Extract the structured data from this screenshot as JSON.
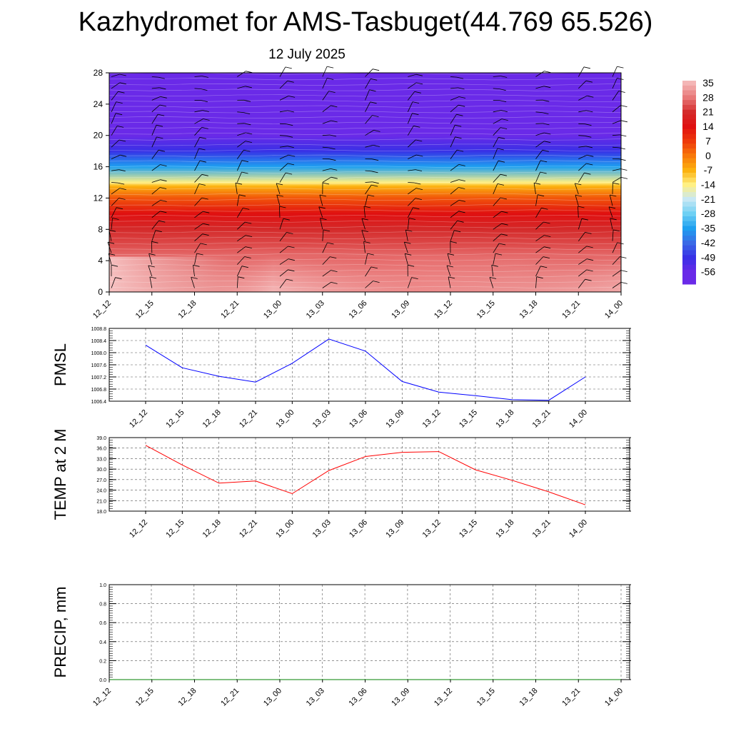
{
  "header": {
    "title": "Kazhydromet for AMS-Tasbuget(44.769 65.526)",
    "subtitle": "12 July 2025"
  },
  "chart_data": [
    {
      "type": "heatmap",
      "title": "",
      "ylim": [
        0,
        28
      ],
      "yticks": [
        0,
        4,
        8,
        12,
        16,
        20,
        24,
        28
      ],
      "times": [
        "12_12",
        "12_15",
        "12_18",
        "12_21",
        "13_00",
        "13_03",
        "13_06",
        "13_09",
        "13_12",
        "13_15",
        "13_18",
        "13_21",
        "14_00"
      ],
      "temperature_profile_by_level": {
        "levels": [
          0,
          2,
          4,
          6,
          8,
          10,
          12,
          13.5,
          14,
          16,
          18,
          20,
          22,
          24,
          26,
          28
        ],
        "values": [
          35,
          32,
          28,
          24,
          21,
          14,
          4,
          -7,
          -14,
          -35,
          -49,
          -56,
          -60,
          -57,
          -59,
          -58
        ]
      },
      "wind_barbs": true,
      "colorbar": {
        "labels": [
          "35",
          "28",
          "21",
          "14",
          "7",
          "0",
          "-7",
          "-14",
          "-21",
          "-28",
          "-35",
          "-42",
          "-49",
          "-56"
        ],
        "colors": [
          "#f4b6b6",
          "#e87878",
          "#d42a2a",
          "#e01010",
          "#ee3a0a",
          "#f8780a",
          "#fcb20f",
          "#fff084",
          "#c8e8f4",
          "#6ed0f4",
          "#1ea0f0",
          "#3a6ae6",
          "#3830e6",
          "#6a2ae8"
        ],
        "range": [
          -60,
          38
        ]
      }
    },
    {
      "type": "line",
      "ylabel": "PMSL",
      "ylim": [
        1006.4,
        1008.8
      ],
      "yticks": [
        "1006.4",
        "1006.8",
        "1007.2",
        "1007.6",
        "1008.0",
        "1008.4",
        "1008.8"
      ],
      "x": [
        "12_12",
        "12_15",
        "12_18",
        "12_21",
        "13_00",
        "13_03",
        "13_06",
        "13_09",
        "13_12",
        "13_15",
        "13_18",
        "13_21",
        "14_00"
      ],
      "values": [
        1008.25,
        1007.5,
        1007.22,
        1007.03,
        1007.65,
        1008.45,
        1008.05,
        1007.05,
        1006.7,
        1006.58,
        1006.45,
        1006.43,
        1007.2
      ],
      "color": "#0000ff"
    },
    {
      "type": "line",
      "ylabel": "TEMP at 2 M",
      "ylim": [
        18.0,
        39.0
      ],
      "yticks": [
        "18.0",
        "21.0",
        "24.0",
        "27.0",
        "30.0",
        "33.0",
        "36.0",
        "39.0"
      ],
      "x": [
        "12_12",
        "12_15",
        "12_18",
        "12_21",
        "13_00",
        "13_03",
        "13_06",
        "13_09",
        "13_12",
        "13_15",
        "13_18",
        "13_21",
        "14_00"
      ],
      "values": [
        36.8,
        31.2,
        26.0,
        26.6,
        23.0,
        29.6,
        33.6,
        34.8,
        35.0,
        29.8,
        26.8,
        23.5,
        19.8
      ],
      "color": "#ff0000"
    },
    {
      "type": "line",
      "ylabel": "PRECIP, mm",
      "ylim": [
        0.0,
        1.0
      ],
      "yticks": [
        "0.0",
        "0.2",
        "0.4",
        "0.6",
        "0.8",
        "1.0"
      ],
      "x": [
        "12_12",
        "12_15",
        "12_18",
        "12_21",
        "13_00",
        "13_03",
        "13_06",
        "13_09",
        "13_12",
        "13_15",
        "13_18",
        "13_21",
        "14_00"
      ],
      "values": [
        0,
        0,
        0,
        0,
        0,
        0,
        0,
        0,
        0,
        0,
        0,
        0,
        0
      ],
      "color": "#008000"
    }
  ]
}
